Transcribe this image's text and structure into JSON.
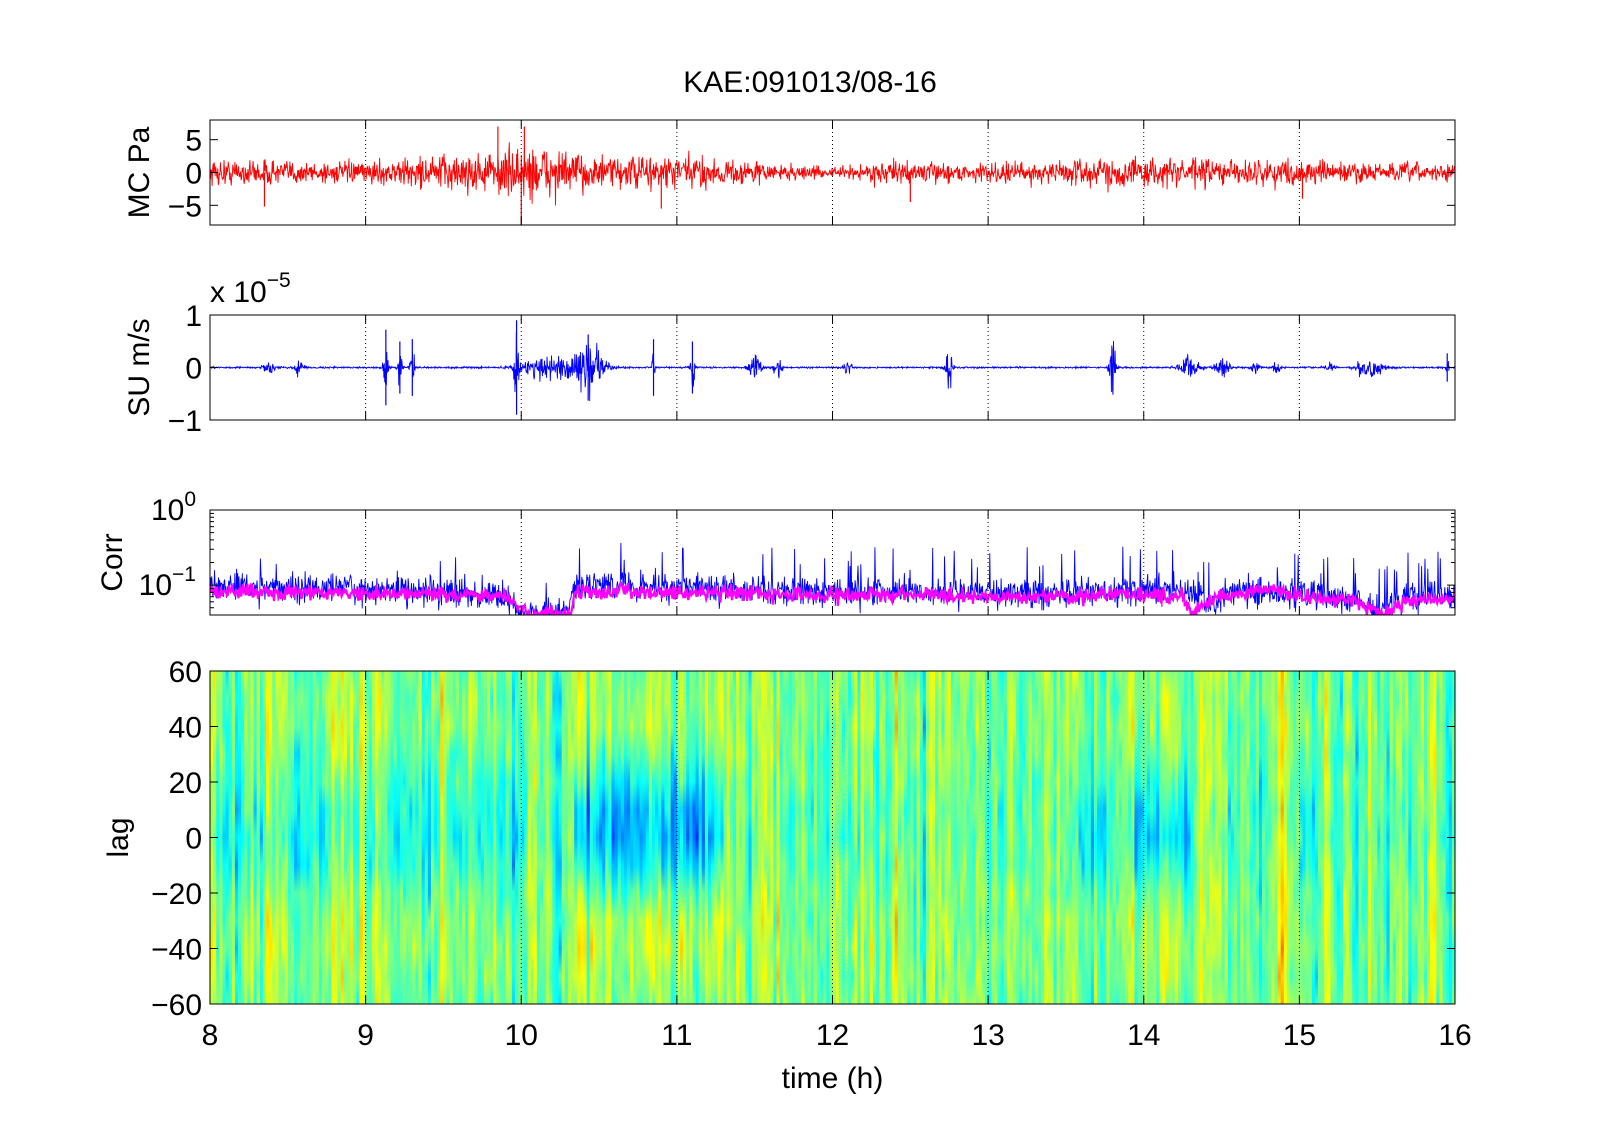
{
  "figure": {
    "title": "KAE:091013/08-16"
  },
  "chart_data": [
    {
      "type": "line",
      "name": "pressure-panel",
      "ylabel": "MC Pa",
      "xlim": [
        8,
        16
      ],
      "ylim": [
        -8,
        8
      ],
      "yticks": [
        "5",
        "0",
        "−5"
      ],
      "ytick_values": [
        5,
        0,
        -5
      ],
      "grid": "x-dotted",
      "series": [
        {
          "color": "#ff0000",
          "style": "dense waveform",
          "envelope": {
            "x": [
              8.0,
              8.5,
              9.0,
              9.5,
              9.9,
              10.0,
              10.5,
              11.0,
              11.5,
              12.0,
              12.3,
              12.6,
              13.0,
              13.5,
              14.0,
              14.5,
              15.0,
              15.5,
              16.0
            ],
            "y": [
              2.2,
              2.0,
              1.6,
              3.0,
              3.6,
              5.0,
              2.5,
              3.0,
              1.8,
              0.8,
              1.8,
              1.6,
              1.5,
              2.2,
              2.5,
              2.2,
              2.0,
              1.6,
              1.5
            ]
          },
          "spikes": [
            {
              "x": 8.35,
              "y": -5.2
            },
            {
              "x": 9.85,
              "y": 7.0
            },
            {
              "x": 10.0,
              "y": -8.0
            },
            {
              "x": 10.02,
              "y": 7.0
            },
            {
              "x": 10.9,
              "y": -5.5
            },
            {
              "x": 12.5,
              "y": -4.5
            },
            {
              "x": 15.02,
              "y": -4.0
            }
          ]
        }
      ]
    },
    {
      "type": "line",
      "name": "velocity-panel",
      "ylabel": "SU m/s",
      "multiplier": "x 10",
      "exponent": "−5",
      "xlim": [
        8,
        16
      ],
      "ylim": [
        -1,
        1
      ],
      "yticks": [
        "1",
        "0",
        "−1"
      ],
      "ytick_values": [
        1,
        0,
        -1
      ],
      "grid": "x-dotted",
      "series": [
        {
          "color": "#0000ff",
          "style": "waveform with bursts",
          "baseline_amplitude": 0.02,
          "bursts": [
            {
              "x": 8.38,
              "amp": 0.15,
              "width": 0.05
            },
            {
              "x": 8.57,
              "amp": 0.2,
              "width": 0.04
            },
            {
              "x": 9.13,
              "amp": 0.8,
              "width": 0.02
            },
            {
              "x": 9.22,
              "amp": 0.55,
              "width": 0.02
            },
            {
              "x": 9.3,
              "amp": 0.6,
              "width": 0.02
            },
            {
              "x": 9.97,
              "amp": 1.0,
              "width": 0.02
            },
            {
              "x": 10.2,
              "amp": 0.35,
              "width": 0.25
            },
            {
              "x": 10.45,
              "amp": 0.6,
              "width": 0.12
            },
            {
              "x": 10.43,
              "amp": 0.7,
              "width": 0.01
            },
            {
              "x": 10.85,
              "amp": 0.6,
              "width": 0.01
            },
            {
              "x": 11.1,
              "amp": 0.55,
              "width": 0.02
            },
            {
              "x": 11.5,
              "amp": 0.35,
              "width": 0.05
            },
            {
              "x": 11.65,
              "amp": 0.25,
              "width": 0.04
            },
            {
              "x": 12.1,
              "amp": 0.2,
              "width": 0.03
            },
            {
              "x": 12.75,
              "amp": 0.6,
              "width": 0.03
            },
            {
              "x": 13.8,
              "amp": 0.75,
              "width": 0.03
            },
            {
              "x": 14.3,
              "amp": 0.35,
              "width": 0.08
            },
            {
              "x": 14.5,
              "amp": 0.3,
              "width": 0.06
            },
            {
              "x": 14.72,
              "amp": 0.15,
              "width": 0.04
            },
            {
              "x": 14.85,
              "amp": 0.2,
              "width": 0.03
            },
            {
              "x": 15.2,
              "amp": 0.1,
              "width": 0.04
            },
            {
              "x": 15.45,
              "amp": 0.35,
              "width": 0.1
            },
            {
              "x": 15.95,
              "amp": 0.3,
              "width": 0.01
            }
          ]
        }
      ]
    },
    {
      "type": "line",
      "name": "corr-panel",
      "ylabel": "Corr",
      "yscale": "log",
      "xlim": [
        8,
        16
      ],
      "ylim": [
        0.04,
        1.0
      ],
      "yticks": [
        {
          "base": "10",
          "exp": "0"
        },
        {
          "base": "10",
          "exp": "−1"
        }
      ],
      "ytick_values": [
        1.0,
        0.1
      ],
      "grid": "x-dotted",
      "series": [
        {
          "color": "#0000ff",
          "style": "noisy",
          "x": [
            8.0,
            8.5,
            9.0,
            9.5,
            9.9,
            10.0,
            10.3,
            10.35,
            11.0,
            11.5,
            12.0,
            12.5,
            13.0,
            13.5,
            14.0,
            14.3,
            14.4,
            14.6,
            15.0,
            15.4,
            15.5,
            15.7,
            16.0
          ],
          "y": [
            0.1,
            0.09,
            0.09,
            0.085,
            0.07,
            0.04,
            0.04,
            0.1,
            0.095,
            0.085,
            0.08,
            0.085,
            0.08,
            0.08,
            0.085,
            0.09,
            0.05,
            0.085,
            0.075,
            0.06,
            0.04,
            0.07,
            0.07
          ]
        },
        {
          "color": "#ff00ff",
          "style": "smoothed",
          "x": [
            8.0,
            8.5,
            9.0,
            9.5,
            9.9,
            10.05,
            10.32,
            10.35,
            11.0,
            11.5,
            12.0,
            12.5,
            13.0,
            13.5,
            14.0,
            14.25,
            14.3,
            14.4,
            14.6,
            14.8,
            15.0,
            15.35,
            15.55,
            15.7,
            16.0
          ],
          "y": [
            0.085,
            0.08,
            0.075,
            0.078,
            0.07,
            0.04,
            0.04,
            0.085,
            0.08,
            0.075,
            0.072,
            0.075,
            0.07,
            0.072,
            0.075,
            0.07,
            0.04,
            0.06,
            0.075,
            0.09,
            0.07,
            0.06,
            0.04,
            0.065,
            0.065
          ]
        }
      ]
    },
    {
      "type": "heatmap",
      "name": "lag-panel",
      "ylabel": "lag",
      "xlabel": "time (h)",
      "xlim": [
        8,
        16
      ],
      "ylim": [
        -60,
        60
      ],
      "xticks": [
        "8",
        "9",
        "10",
        "11",
        "12",
        "13",
        "14",
        "15",
        "16"
      ],
      "xtick_values": [
        8,
        9,
        10,
        11,
        12,
        13,
        14,
        15,
        16
      ],
      "yticks": [
        "60",
        "40",
        "20",
        "0",
        "−20",
        "−40",
        "−60"
      ],
      "ytick_values": [
        60,
        40,
        20,
        0,
        -20,
        -40,
        -60
      ],
      "colormap": "jet",
      "strong_segments": [
        {
          "x": [
            8.0,
            10.0
          ],
          "strength": 0.4
        },
        {
          "x": [
            10.35,
            11.3
          ],
          "strength": 1.0
        },
        {
          "x": [
            12.0,
            12.3
          ],
          "strength": 0.2
        },
        {
          "x": [
            13.5,
            13.8
          ],
          "strength": 0.45
        },
        {
          "x": [
            13.9,
            14.3
          ],
          "strength": 0.75
        },
        {
          "x": [
            15.0,
            15.1
          ],
          "strength": 0.4
        }
      ]
    }
  ]
}
